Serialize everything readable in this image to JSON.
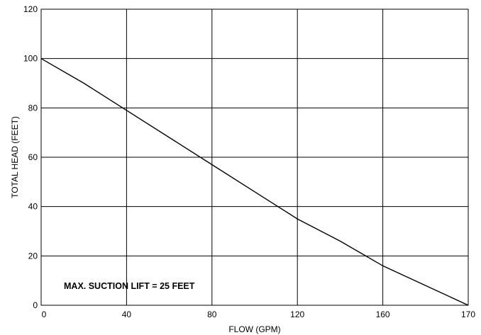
{
  "chart_data": {
    "type": "line",
    "xlabel": "FLOW (GPM)",
    "ylabel": "TOTAL HEAD (FEET)",
    "x_tick_labels": [
      "0",
      "40",
      "80",
      "120",
      "160",
      "170"
    ],
    "y_tick_labels": [
      "0",
      "20",
      "40",
      "60",
      "80",
      "100",
      "120"
    ],
    "xlim": [
      0,
      170
    ],
    "ylim": [
      0,
      120
    ],
    "grid": true,
    "annotation": "MAX. SUCTION LIFT = 25 FEET",
    "series": [
      {
        "x": [
          0,
          20,
          40,
          60,
          80,
          100,
          120,
          140,
          160,
          170
        ],
        "y": [
          100,
          90,
          79,
          68,
          57,
          46,
          35,
          26,
          16,
          0
        ]
      }
    ],
    "colors": {
      "line": "#000000",
      "grid": "#000000",
      "background": "#ffffff"
    }
  }
}
